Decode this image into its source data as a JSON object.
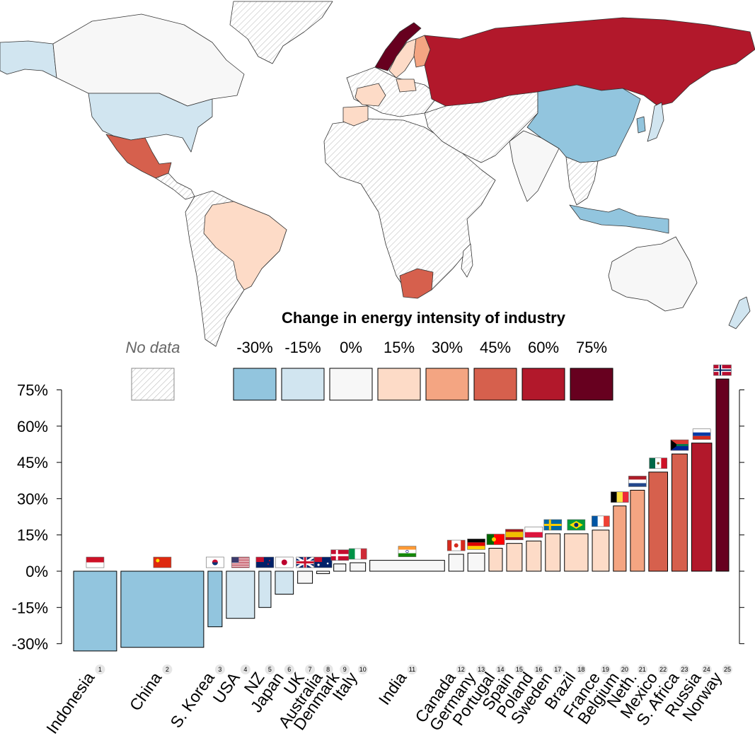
{
  "chart_data": {
    "type": "bar",
    "title": "Change in energy intensity of industry",
    "ylabel": "",
    "xlabel": "",
    "ylim": [
      -33,
      80
    ],
    "yticks": [
      "75%",
      "60%",
      "45%",
      "30%",
      "15%",
      "0%",
      "-15%",
      "-30%"
    ],
    "ytick_values": [
      75,
      60,
      45,
      30,
      15,
      0,
      -15,
      -30
    ],
    "legend": {
      "no_data_label": "No data",
      "bins": [
        {
          "label": "-30%",
          "color": "#92c5de"
        },
        {
          "label": "-15%",
          "color": "#d1e5f0"
        },
        {
          "label": "0%",
          "color": "#f7f7f7"
        },
        {
          "label": "15%",
          "color": "#fddbc7"
        },
        {
          "label": "30%",
          "color": "#f4a582"
        },
        {
          "label": "45%",
          "color": "#d6604d"
        },
        {
          "label": "60%",
          "color": "#b2182b"
        },
        {
          "label": "75%",
          "color": "#67001f"
        }
      ]
    },
    "width_note": "bar widths proportional to industrial energy use",
    "series": [
      {
        "rank": "1",
        "name": "Indonesia",
        "value": -33,
        "weight": 64,
        "color": "#92c5de",
        "flag": "id"
      },
      {
        "rank": "2",
        "name": "China",
        "value": -31.5,
        "weight": 123,
        "color": "#92c5de",
        "flag": "cn"
      },
      {
        "rank": "3",
        "name": "S. Korea",
        "value": -23,
        "weight": 21,
        "color": "#92c5de",
        "flag": "kr"
      },
      {
        "rank": "4",
        "name": "USA",
        "value": -19.5,
        "weight": 42,
        "color": "#d1e5f0",
        "flag": "us"
      },
      {
        "rank": "5",
        "name": "NZ",
        "value": -15,
        "weight": 18,
        "color": "#d1e5f0",
        "flag": "nz"
      },
      {
        "rank": "6",
        "name": "Japan",
        "value": -9.5,
        "weight": 27,
        "color": "#d1e5f0",
        "flag": "jp"
      },
      {
        "rank": "7",
        "name": "UK",
        "value": -5,
        "weight": 22,
        "color": "#f7f7f7",
        "flag": "gb"
      },
      {
        "rank": "8",
        "name": "Australia",
        "value": -1,
        "weight": 19,
        "color": "#f7f7f7",
        "flag": "au"
      },
      {
        "rank": "9",
        "name": "Denmark",
        "value": 3,
        "weight": 18,
        "color": "#f7f7f7",
        "flag": "dk"
      },
      {
        "rank": "10",
        "name": "Italy",
        "value": 3.5,
        "weight": 23,
        "color": "#f7f7f7",
        "flag": "it"
      },
      {
        "rank": "11",
        "name": "India",
        "value": 4.5,
        "weight": 111,
        "color": "#f7f7f7",
        "flag": "in"
      },
      {
        "rank": "12",
        "name": "Canada",
        "value": 7,
        "weight": 22,
        "color": "#f7f7f7",
        "flag": "ca"
      },
      {
        "rank": "13",
        "name": "Germany",
        "value": 7.5,
        "weight": 25,
        "color": "#f7f7f7",
        "flag": "de"
      },
      {
        "rank": "14",
        "name": "Portugal",
        "value": 9.5,
        "weight": 20,
        "color": "#fddbc7",
        "flag": "pt"
      },
      {
        "rank": "15",
        "name": "Spain",
        "value": 11.5,
        "weight": 23,
        "color": "#fddbc7",
        "flag": "es"
      },
      {
        "rank": "16",
        "name": "Poland",
        "value": 12.5,
        "weight": 22,
        "color": "#fddbc7",
        "flag": "pl"
      },
      {
        "rank": "17",
        "name": "Sweden",
        "value": 15.5,
        "weight": 22,
        "color": "#fddbc7",
        "flag": "se"
      },
      {
        "rank": "18",
        "name": "Brazil",
        "value": 15.5,
        "weight": 35,
        "color": "#fddbc7",
        "flag": "br"
      },
      {
        "rank": "19",
        "name": "France",
        "value": 17,
        "weight": 25,
        "color": "#fddbc7",
        "flag": "fr"
      },
      {
        "rank": "20",
        "name": "Belgium",
        "value": 27,
        "weight": 19,
        "color": "#f4a582",
        "flag": "be"
      },
      {
        "rank": "21",
        "name": "Neth.",
        "value": 33.5,
        "weight": 21,
        "color": "#f4a582",
        "flag": "nl"
      },
      {
        "rank": "22",
        "name": "Mexico",
        "value": 41,
        "weight": 28,
        "color": "#d6604d",
        "flag": "mx"
      },
      {
        "rank": "23",
        "name": "S. Africa",
        "value": 48.5,
        "weight": 23,
        "color": "#d6604d",
        "flag": "za"
      },
      {
        "rank": "24",
        "name": "Russia",
        "value": 53,
        "weight": 30,
        "color": "#b2182b",
        "flag": "ru"
      },
      {
        "rank": "25",
        "name": "Norway",
        "value": 79.5,
        "weight": 19,
        "color": "#67001f",
        "flag": "no"
      }
    ]
  },
  "map": {
    "no_data_pattern": "diagonal-hatch",
    "regions": [
      {
        "name": "Canada",
        "color": "#f7f7f7"
      },
      {
        "name": "USA",
        "color": "#d1e5f0"
      },
      {
        "name": "Alaska",
        "color": "#d1e5f0"
      },
      {
        "name": "Greenland",
        "color": "no-data"
      },
      {
        "name": "Mexico",
        "color": "#d6604d"
      },
      {
        "name": "Brazil",
        "color": "#fddbc7"
      },
      {
        "name": "South America other",
        "color": "no-data"
      },
      {
        "name": "Africa",
        "color": "no-data"
      },
      {
        "name": "S. Africa",
        "color": "#d6604d"
      },
      {
        "name": "Russia",
        "color": "#b2182b"
      },
      {
        "name": "China",
        "color": "#92c5de"
      },
      {
        "name": "India",
        "color": "#f7f7f7"
      },
      {
        "name": "Indonesia",
        "color": "#92c5de"
      },
      {
        "name": "Australia",
        "color": "#f7f7f7"
      },
      {
        "name": "NZ",
        "color": "#d1e5f0"
      },
      {
        "name": "Japan",
        "color": "#d1e5f0"
      },
      {
        "name": "Norway",
        "color": "#67001f"
      },
      {
        "name": "Sweden",
        "color": "#fddbc7"
      },
      {
        "name": "Finland",
        "color": "#f4a582"
      },
      {
        "name": "France",
        "color": "#fddbc7"
      },
      {
        "name": "Spain",
        "color": "#fddbc7"
      },
      {
        "name": "Middle East / Central Asia",
        "color": "no-data"
      }
    ]
  }
}
